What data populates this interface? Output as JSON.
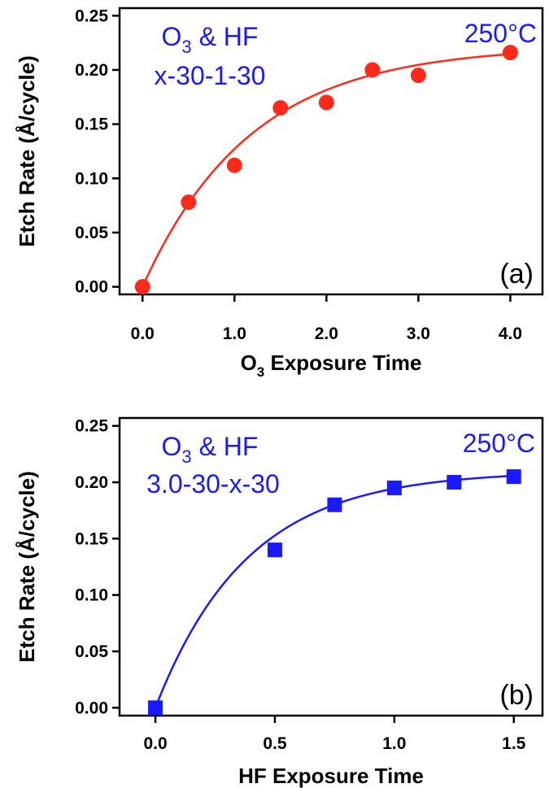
{
  "chart_data": [
    {
      "type": "scatter",
      "panel_label": "(a)",
      "color": "#ff2a1a",
      "marker": "circle",
      "xlabel_main": "O",
      "xlabel_sub": "3",
      "xlabel_rest": " Exposure Time",
      "ylabel": "Etch Rate (Å/cycle)",
      "xlim": [
        -0.25,
        4.35
      ],
      "ylim": [
        -0.007,
        0.257
      ],
      "xticks": [
        0.0,
        1.0,
        2.0,
        3.0,
        4.0
      ],
      "xtick_labels": [
        "0.0",
        "1.0",
        "2.0",
        "3.0",
        "4.0"
      ],
      "yticks": [
        0.0,
        0.05,
        0.1,
        0.15,
        0.2,
        0.25
      ],
      "ytick_labels": [
        "0.00",
        "0.05",
        "0.10",
        "0.15",
        "0.20",
        "0.25"
      ],
      "annotations": {
        "line1_main": "O",
        "line1_sub": "3",
        "line1_rest": " & HF",
        "line2": "x-30-1-30",
        "temp": "250°C",
        "color": "#1a1aff"
      },
      "points": {
        "x": [
          0.0,
          0.5,
          1.0,
          1.5,
          2.0,
          2.5,
          3.0,
          4.0
        ],
        "y": [
          0.0,
          0.078,
          0.112,
          0.165,
          0.17,
          0.2,
          0.195,
          0.216
        ]
      },
      "fit": {
        "a": 0.222,
        "k": 0.85,
        "x_range": [
          0.0,
          4.0
        ]
      }
    },
    {
      "type": "scatter",
      "panel_label": "(b)",
      "color": "#1a1aff",
      "marker": "square",
      "xlabel_main": "HF Exposure Time",
      "xlabel_sub": "",
      "xlabel_rest": "",
      "ylabel": "Etch Rate (Å/cycle)",
      "xlim": [
        -0.15,
        1.62
      ],
      "ylim": [
        -0.007,
        0.257
      ],
      "xticks": [
        0.0,
        0.5,
        1.0,
        1.5
      ],
      "xtick_labels": [
        "0.0",
        "0.5",
        "1.0",
        "1.5"
      ],
      "yticks": [
        0.0,
        0.05,
        0.1,
        0.15,
        0.2,
        0.25
      ],
      "ytick_labels": [
        "0.00",
        "0.05",
        "0.10",
        "0.15",
        "0.20",
        "0.25"
      ],
      "annotations": {
        "line1_main": "O",
        "line1_sub": "3",
        "line1_rest": " & HF",
        "line2": "3.0-30-x-30",
        "temp": "250°C",
        "color": "#1a1aff"
      },
      "points": {
        "x": [
          0.0,
          0.5,
          0.75,
          1.0,
          1.25,
          1.5
        ],
        "y": [
          0.0,
          0.14,
          0.18,
          0.195,
          0.2,
          0.205
        ]
      },
      "fit": {
        "a": 0.21,
        "k": 2.6,
        "x_range": [
          0.0,
          1.5
        ]
      }
    }
  ]
}
